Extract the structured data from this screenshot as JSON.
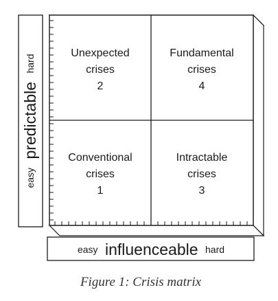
{
  "matrix": {
    "quadrants": {
      "top_left": {
        "line1": "Unexpected",
        "line2": "crises",
        "number": "2"
      },
      "top_right": {
        "line1": "Fundamental",
        "line2": "crises",
        "number": "4"
      },
      "bottom_left": {
        "line1": "Conventional",
        "line2": "crises",
        "number": "1"
      },
      "bottom_right": {
        "line1": "Intractable",
        "line2": "crises",
        "number": "3"
      }
    }
  },
  "y_axis": {
    "low": "easy",
    "title": "predictable",
    "high": "hard"
  },
  "x_axis": {
    "low": "easy",
    "title": "influenceable",
    "high": "hard"
  },
  "caption": "Figure 1:  Crisis matrix",
  "colors": {
    "ink": "#1a1a1a",
    "caption": "#333333"
  }
}
